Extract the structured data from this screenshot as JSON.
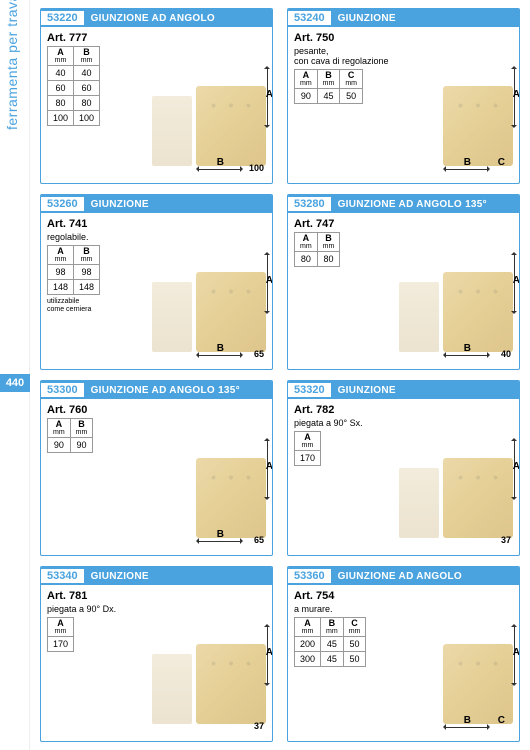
{
  "sidebar": {
    "label": "ferramenta per travature",
    "page_number": "440"
  },
  "colors": {
    "accent": "#4aa3df",
    "gold": "#d4b050",
    "wood": "#e8d8b8"
  },
  "cards": [
    {
      "code": "53220",
      "title": "GIUNZIONE AD ANGOLO",
      "art": "Art. 777",
      "desc": "",
      "columns": [
        "A",
        "B"
      ],
      "rows": [
        [
          "40",
          "40"
        ],
        [
          "60",
          "60"
        ],
        [
          "80",
          "80"
        ],
        [
          "100",
          "100"
        ]
      ],
      "dims": {
        "a": "A",
        "b": "B",
        "num": "100"
      }
    },
    {
      "code": "53240",
      "title": "GIUNZIONE",
      "art": "Art. 750",
      "desc": "pesante,\ncon cava di regolazione",
      "columns": [
        "A",
        "B",
        "C"
      ],
      "rows": [
        [
          "90",
          "45",
          "50"
        ]
      ],
      "dims": {
        "a": "A",
        "b": "B",
        "c": "C"
      }
    },
    {
      "code": "53260",
      "title": "GIUNZIONE",
      "art": "Art. 741",
      "desc": "regolabile.",
      "columns": [
        "A",
        "B"
      ],
      "rows": [
        [
          "98",
          "98"
        ],
        [
          "148",
          "148"
        ]
      ],
      "note": "utilizzabile\ncome cerniera",
      "dims": {
        "a": "A",
        "b": "B",
        "num": "65"
      }
    },
    {
      "code": "53280",
      "title": "GIUNZIONE AD ANGOLO 135°",
      "art": "Art. 747",
      "desc": "",
      "columns": [
        "A",
        "B"
      ],
      "rows": [
        [
          "80",
          "80"
        ]
      ],
      "dims": {
        "a": "A",
        "b": "B",
        "num": "40"
      }
    },
    {
      "code": "53300",
      "title": "GIUNZIONE AD ANGOLO 135°",
      "art": "Art. 760",
      "desc": "",
      "columns": [
        "A",
        "B"
      ],
      "rows": [
        [
          "90",
          "90"
        ]
      ],
      "dims": {
        "a": "A",
        "b": "B",
        "num": "65"
      }
    },
    {
      "code": "53320",
      "title": "GIUNZIONE",
      "art": "Art. 782",
      "desc": "piegata a 90° Sx.",
      "columns": [
        "A"
      ],
      "rows": [
        [
          "170"
        ]
      ],
      "dims": {
        "a": "A",
        "num": "37"
      }
    },
    {
      "code": "53340",
      "title": "GIUNZIONE",
      "art": "Art. 781",
      "desc": "piegata a 90° Dx.",
      "columns": [
        "A"
      ],
      "rows": [
        [
          "170"
        ]
      ],
      "dims": {
        "a": "A",
        "num": "37"
      }
    },
    {
      "code": "53360",
      "title": "GIUNZIONE AD ANGOLO",
      "art": "Art. 754",
      "desc": "a murare.",
      "columns": [
        "A",
        "B",
        "C"
      ],
      "rows": [
        [
          "200",
          "45",
          "50"
        ],
        [
          "300",
          "45",
          "50"
        ]
      ],
      "dims": {
        "a": "A",
        "b": "B",
        "c": "C"
      }
    }
  ]
}
